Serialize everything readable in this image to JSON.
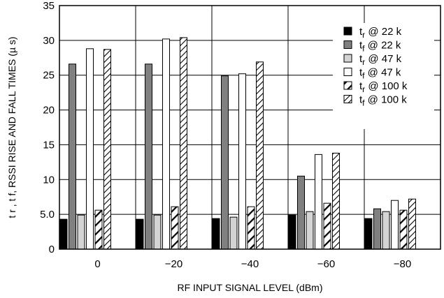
{
  "chart_data": {
    "type": "bar",
    "xlabel": "RF INPUT SIGNAL LEVEL (dBm)",
    "ylabel": "t r ,  t f,  RSSI RISE AND FALL TIMES (µ s)",
    "ylim": [
      0,
      35
    ],
    "yticks": [
      "0",
      "5.0",
      "10",
      "15",
      "20",
      "25",
      "30",
      "35"
    ],
    "categories": [
      "0",
      "−20",
      "−40",
      "−60",
      "−80"
    ],
    "grid": true,
    "legend_position": "top-right",
    "series": [
      {
        "name": "t_r @ 22 k",
        "sub": "r",
        "suffix": "  @ 22 k",
        "fill": "solid-black",
        "values": [
          4.3,
          4.3,
          4.4,
          4.9,
          4.4
        ]
      },
      {
        "name": "t_f @ 22 k",
        "sub": "f",
        "suffix": "   @ 22 k",
        "fill": "solid-gray",
        "values": [
          26.6,
          26.6,
          24.9,
          10.5,
          5.8
        ]
      },
      {
        "name": "t_r @ 47 k",
        "sub": "r",
        "suffix": "  @ 47 k",
        "fill": "light-gray",
        "values": [
          4.9,
          4.9,
          4.6,
          5.4,
          5.4
        ]
      },
      {
        "name": "t_f @ 47 k",
        "sub": "f",
        "suffix": "   @ 47 k",
        "fill": "white",
        "values": [
          28.8,
          30.2,
          25.2,
          13.6,
          7.0
        ]
      },
      {
        "name": "t_r @ 100 k",
        "sub": "r",
        "suffix": "  @ 100 k",
        "fill": "hatch-bold",
        "values": [
          5.6,
          6.1,
          6.1,
          6.6,
          5.6
        ]
      },
      {
        "name": "t_f @ 100 k",
        "sub": "f",
        "suffix": "  @ 100 k",
        "fill": "hatch-fine",
        "values": [
          28.7,
          30.4,
          26.9,
          13.8,
          7.2
        ]
      }
    ],
    "colors": {
      "solid-black": "#000000",
      "solid-gray": "#808080",
      "light-gray": "#d4d4d4",
      "white": "#ffffff"
    }
  }
}
